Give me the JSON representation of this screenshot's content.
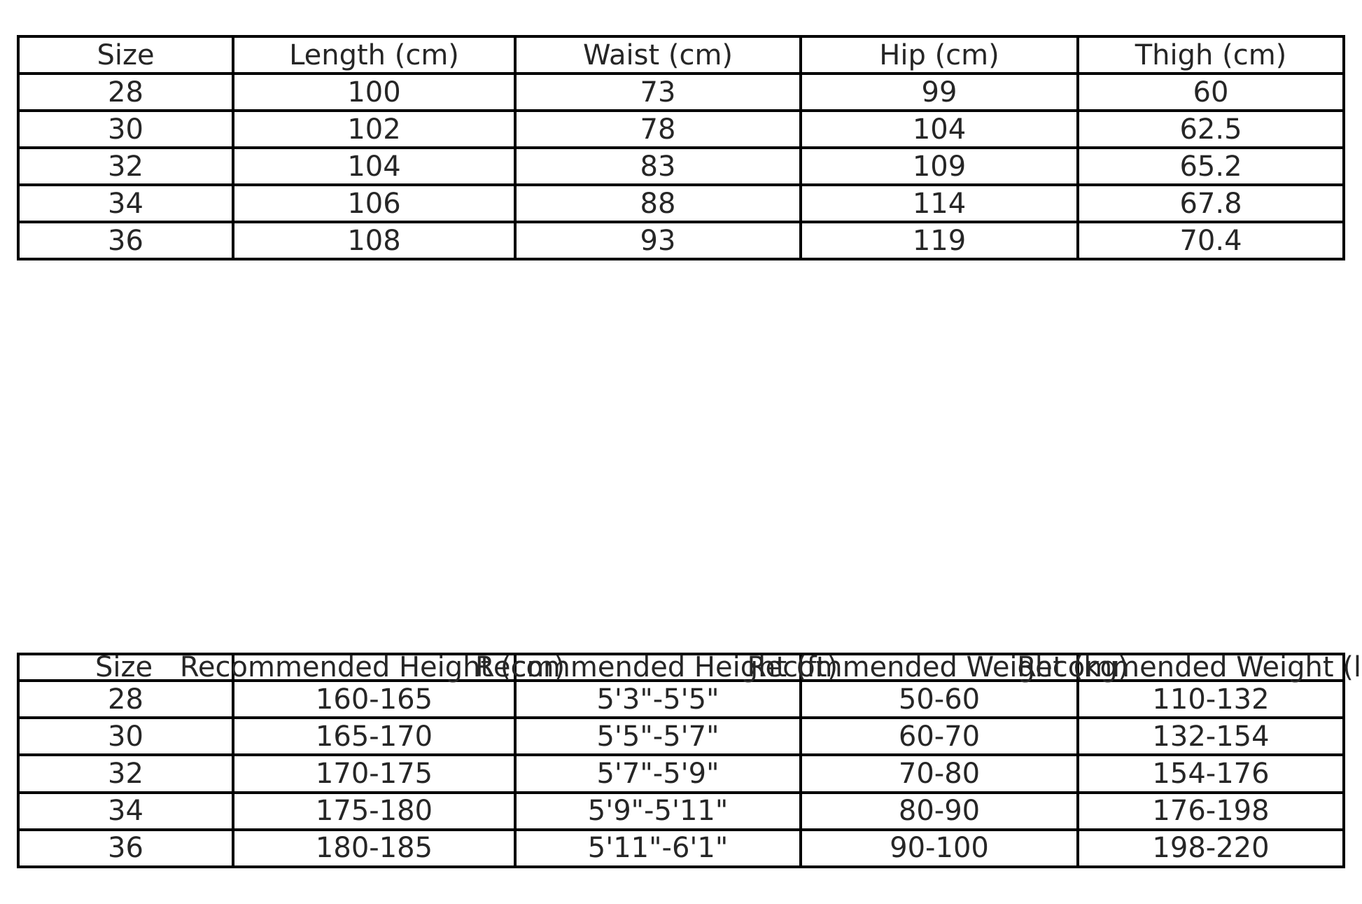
{
  "page": {
    "background_color": "#ffffff",
    "grid_line_color": "#000000",
    "text_color": "#262626"
  },
  "chart_data": [
    {
      "type": "table",
      "name": "size_chart",
      "columns": [
        "Size",
        "Length (cm)",
        "Waist (cm)",
        "Hip (cm)",
        "Thigh (cm)"
      ],
      "rows": [
        [
          "28",
          "100",
          "73",
          "99",
          "60"
        ],
        [
          "30",
          "102",
          "78",
          "104",
          "62.5"
        ],
        [
          "32",
          "104",
          "83",
          "109",
          "65.2"
        ],
        [
          "34",
          "106",
          "88",
          "114",
          "67.8"
        ],
        [
          "36",
          "108",
          "93",
          "119",
          "70.4"
        ]
      ]
    },
    {
      "type": "table",
      "name": "fit_guide",
      "columns": [
        "Size",
        "Recommended Height (cm)",
        "Recommended Height (ft)",
        "Recommended Weight (kg)",
        "Recommended Weight (lbs)"
      ],
      "rows": [
        [
          "28",
          "160-165",
          "5'3\"-5'5\"",
          "50-60",
          "110-132"
        ],
        [
          "30",
          "165-170",
          "5'5\"-5'7\"",
          "60-70",
          "132-154"
        ],
        [
          "32",
          "170-175",
          "5'7\"-5'9\"",
          "70-80",
          "154-176"
        ],
        [
          "34",
          "175-180",
          "5'9\"-5'11\"",
          "80-90",
          "176-198"
        ],
        [
          "36",
          "180-185",
          "5'11\"-6'1\"",
          "90-100",
          "198-220"
        ]
      ]
    }
  ]
}
